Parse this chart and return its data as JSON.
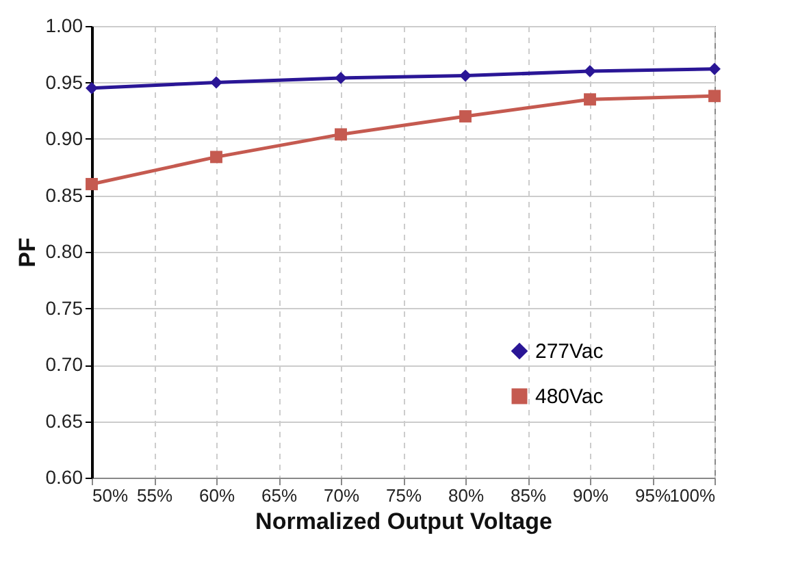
{
  "chart_data": {
    "type": "line",
    "xlabel": "Normalized Output Voltage",
    "ylabel": "PF",
    "x": [
      50,
      60,
      70,
      80,
      90,
      100
    ],
    "series": [
      {
        "name": "277Vac",
        "color": "#2a1696",
        "marker": "diamond",
        "values": [
          0.945,
          0.95,
          0.954,
          0.956,
          0.96,
          0.962
        ]
      },
      {
        "name": "480Vac",
        "color": "#c55a50",
        "marker": "square",
        "values": [
          0.86,
          0.884,
          0.904,
          0.92,
          0.935,
          0.938
        ]
      }
    ],
    "xlim": [
      50,
      100
    ],
    "xticks": [
      {
        "value": 50,
        "label": "50%"
      },
      {
        "value": 55,
        "label": "55%"
      },
      {
        "value": 60,
        "label": "60%"
      },
      {
        "value": 65,
        "label": "65%"
      },
      {
        "value": 70,
        "label": "70%"
      },
      {
        "value": 75,
        "label": "75%"
      },
      {
        "value": 80,
        "label": "80%"
      },
      {
        "value": 85,
        "label": "85%"
      },
      {
        "value": 90,
        "label": "90%"
      },
      {
        "value": 95,
        "label": "95%"
      },
      {
        "value": 100,
        "label": "100%"
      }
    ],
    "ylim": [
      0.6,
      1.0
    ],
    "yticks": [
      {
        "value": 0.6,
        "label": "0.60"
      },
      {
        "value": 0.65,
        "label": "0.65"
      },
      {
        "value": 0.7,
        "label": "0.70"
      },
      {
        "value": 0.75,
        "label": "0.75"
      },
      {
        "value": 0.8,
        "label": "0.80"
      },
      {
        "value": 0.85,
        "label": "0.85"
      },
      {
        "value": 0.9,
        "label": "0.90"
      },
      {
        "value": 0.95,
        "label": "0.95"
      },
      {
        "value": 1.0,
        "label": "1.00"
      }
    ],
    "grid": true,
    "legend": "bottom right",
    "line_style": "solid"
  }
}
